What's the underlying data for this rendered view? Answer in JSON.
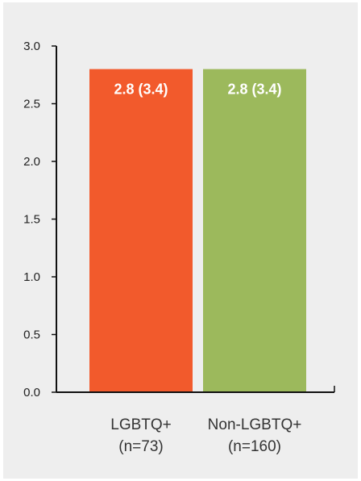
{
  "chart_data": {
    "type": "bar",
    "title": "",
    "xlabel": "",
    "ylabel": "",
    "ylim": [
      0,
      3.0
    ],
    "yticks": [
      0.0,
      0.5,
      1.0,
      1.5,
      2.0,
      2.5,
      3.0
    ],
    "ytick_labels": [
      "0.0",
      "0.5",
      "1.0",
      "1.5",
      "2.0",
      "2.5",
      "3.0"
    ],
    "grid": false,
    "categories": [
      {
        "line1": "LGBTQ+",
        "line2": "(n=73)"
      },
      {
        "line1": "Non-LGBTQ+",
        "line2": "(n=160)"
      }
    ],
    "values": [
      2.8,
      2.8
    ],
    "data_labels": [
      "2.8 (3.4)",
      "2.8 (3.4)"
    ],
    "colors": [
      "#f25a2c",
      "#9cb95c"
    ]
  }
}
